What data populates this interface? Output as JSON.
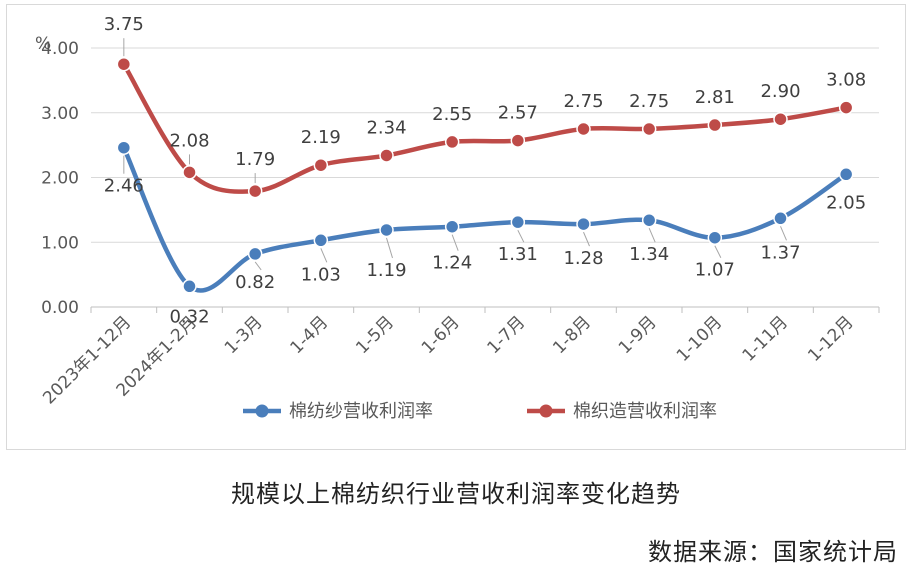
{
  "caption": "规模以上棉纺织行业营收利润率变化趋势",
  "source": "数据来源：国家统计局",
  "chart_data": {
    "type": "line",
    "unit_label": "%",
    "categories": [
      "2023年1-12月",
      "2024年1-2月",
      "1-3月",
      "1-4月",
      "1-5月",
      "1-6月",
      "1-7月",
      "1-8月",
      "1-9月",
      "1-10月",
      "1-11月",
      "1-12月"
    ],
    "ylim": [
      0,
      4
    ],
    "yticks": [
      "0.00",
      "1.00",
      "2.00",
      "3.00",
      "4.00"
    ],
    "grid": true,
    "legend_position": "bottom",
    "series": [
      {
        "name": "棉纺纱营收利润率",
        "color": "#4a7ebb",
        "values": [
          2.46,
          0.32,
          0.82,
          1.03,
          1.19,
          1.24,
          1.31,
          1.28,
          1.34,
          1.07,
          1.37,
          2.05
        ],
        "labels": [
          "2.46",
          "0.32",
          "0.82",
          "1.03",
          "1.19",
          "1.24",
          "1.31",
          "1.28",
          "1.34",
          "1.07",
          "1.37",
          "2.05"
        ]
      },
      {
        "name": "棉织造营收利润率",
        "color": "#be4b48",
        "values": [
          3.75,
          2.08,
          1.79,
          2.19,
          2.34,
          2.55,
          2.57,
          2.75,
          2.75,
          2.81,
          2.9,
          3.08
        ],
        "labels": [
          "3.75",
          "2.08",
          "1.79",
          "2.19",
          "2.34",
          "2.55",
          "2.57",
          "2.75",
          "2.75",
          "2.81",
          "2.90",
          "3.08"
        ]
      }
    ]
  }
}
